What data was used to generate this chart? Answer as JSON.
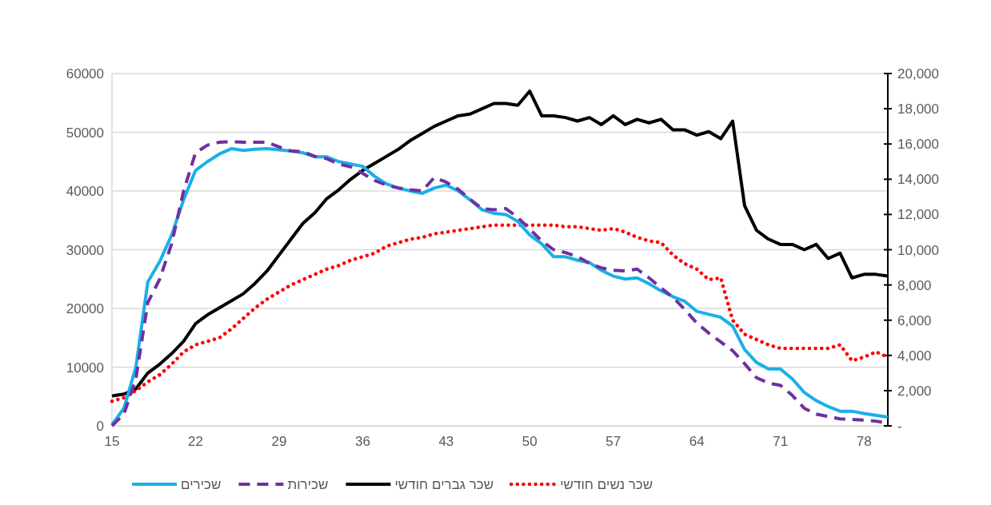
{
  "chart_data": {
    "type": "line",
    "x": [
      15,
      16,
      17,
      18,
      19,
      20,
      21,
      22,
      23,
      24,
      25,
      26,
      27,
      28,
      29,
      30,
      31,
      32,
      33,
      34,
      35,
      36,
      37,
      38,
      39,
      40,
      41,
      42,
      43,
      44,
      45,
      46,
      47,
      48,
      49,
      50,
      51,
      52,
      53,
      54,
      55,
      56,
      57,
      58,
      59,
      60,
      61,
      62,
      63,
      64,
      65,
      66,
      67,
      68,
      69,
      70,
      71,
      72,
      73,
      74,
      75,
      76,
      77,
      78,
      79,
      80
    ],
    "xlim": [
      15,
      80
    ],
    "xticks": [
      15,
      22,
      29,
      36,
      43,
      50,
      57,
      64,
      71,
      78
    ],
    "ylim": [
      0,
      60000
    ],
    "yticks": [
      0,
      10000,
      20000,
      30000,
      40000,
      50000,
      60000
    ],
    "y2lim": [
      0,
      20000
    ],
    "y2ticks": [
      {
        "value": 0,
        "label": "-"
      },
      {
        "value": 2000,
        "label": "2,000"
      },
      {
        "value": 4000,
        "label": "4,000"
      },
      {
        "value": 6000,
        "label": "6,000"
      },
      {
        "value": 8000,
        "label": "8,000"
      },
      {
        "value": 10000,
        "label": "10,000"
      },
      {
        "value": 12000,
        "label": "12,000"
      },
      {
        "value": 14000,
        "label": "14,000"
      },
      {
        "value": 16000,
        "label": "16,000"
      },
      {
        "value": 18000,
        "label": "18,000"
      },
      {
        "value": 20000,
        "label": "20,000"
      }
    ],
    "grid": "y",
    "legend": "bottom",
    "series": [
      {
        "name": "שכירים",
        "color": "#1ab0e8",
        "axis": "y",
        "line_style": "solid",
        "values": [
          200,
          3000,
          10000,
          24500,
          28000,
          32500,
          38500,
          43500,
          45000,
          46300,
          47200,
          46900,
          47100,
          47200,
          47000,
          46800,
          46500,
          45800,
          45800,
          45000,
          44600,
          44200,
          42500,
          41200,
          40500,
          40000,
          39600,
          40500,
          41000,
          40000,
          38500,
          36800,
          36200,
          36000,
          34800,
          32500,
          31000,
          28800,
          28800,
          28200,
          27800,
          26500,
          25500,
          25000,
          25200,
          24200,
          23000,
          22000,
          21200,
          19500,
          19000,
          18500,
          17000,
          13000,
          10800,
          9700,
          9700,
          8000,
          5700,
          4300,
          3300,
          2500,
          2500,
          2100,
          1800,
          1500
        ]
      },
      {
        "name": "שכירות",
        "color": "#7030a0",
        "axis": "y",
        "line_style": "dashed",
        "values": [
          0,
          2000,
          8000,
          21000,
          25000,
          31000,
          40000,
          46500,
          47800,
          48300,
          48400,
          48300,
          48300,
          48300,
          47500,
          46800,
          46700,
          45900,
          45500,
          44600,
          44100,
          43000,
          41800,
          41000,
          40500,
          40200,
          40000,
          42300,
          41500,
          40300,
          38600,
          37000,
          36800,
          37000,
          35500,
          33500,
          31500,
          30000,
          29500,
          28800,
          27700,
          26900,
          26500,
          26400,
          26700,
          25200,
          23500,
          21900,
          19800,
          17500,
          15800,
          14300,
          12800,
          10600,
          8200,
          7300,
          6900,
          5200,
          3000,
          2000,
          1600,
          1200,
          1100,
          1000,
          800,
          500
        ]
      },
      {
        "name": "שכר גברים חודשי",
        "color": "#000000",
        "axis": "y2",
        "line_style": "solid",
        "values": [
          1700,
          1800,
          2100,
          3000,
          3500,
          4100,
          4800,
          5800,
          6300,
          6700,
          7100,
          7500,
          8100,
          8800,
          9700,
          10600,
          11500,
          12100,
          12900,
          13400,
          14000,
          14500,
          14900,
          15300,
          15700,
          16200,
          16600,
          17000,
          17300,
          17600,
          17700,
          18000,
          18300,
          18300,
          18200,
          19000,
          17600,
          17600,
          17500,
          17300,
          17500,
          17100,
          17600,
          17100,
          17400,
          17200,
          17400,
          16800,
          16800,
          16500,
          16700,
          16300,
          17300,
          12500,
          11100,
          10600,
          10300,
          10300,
          10000,
          10300,
          9500,
          9800,
          8400,
          8600,
          8600,
          8500
        ]
      },
      {
        "name": "שכר נשים חודשי",
        "color": "#ff0000",
        "axis": "y2",
        "line_style": "dotted",
        "values": [
          1400,
          1600,
          2000,
          2500,
          2900,
          3500,
          4200,
          4600,
          4800,
          5000,
          5500,
          6100,
          6700,
          7200,
          7600,
          8000,
          8300,
          8600,
          8900,
          9100,
          9400,
          9600,
          9800,
          10200,
          10400,
          10600,
          10700,
          10900,
          11000,
          11100,
          11200,
          11300,
          11400,
          11400,
          11400,
          11400,
          11400,
          11400,
          11300,
          11300,
          11200,
          11100,
          11200,
          11000,
          10700,
          10500,
          10400,
          9700,
          9200,
          8900,
          8300,
          8400,
          6000,
          5200,
          4900,
          4600,
          4400,
          4400,
          4400,
          4400,
          4400,
          4600,
          3700,
          3900,
          4200,
          3900
        ]
      }
    ]
  }
}
